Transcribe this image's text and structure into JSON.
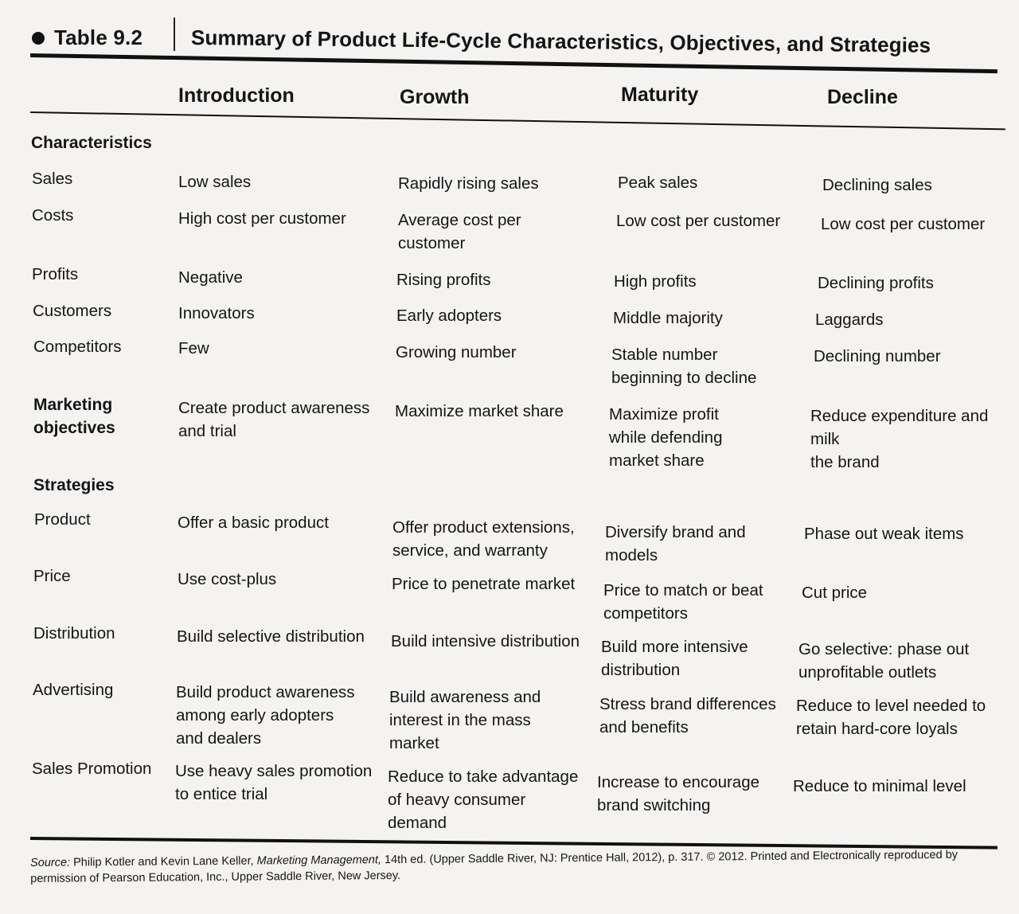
{
  "header": {
    "table_label": "Table 9.2",
    "title": "Summary of Product Life-Cycle Characteristics, Objectives, and Strategies"
  },
  "columns": [
    "Introduction",
    "Growth",
    "Maturity",
    "Decline"
  ],
  "sections": {
    "characteristics": "Characteristics",
    "marketing_objectives": "Marketing\nobjectives",
    "strategies": "Strategies"
  },
  "rows": [
    {
      "label": "Sales",
      "cells": [
        "Low sales",
        "Rapidly rising sales",
        "Peak sales",
        "Declining sales"
      ]
    },
    {
      "label": "Costs",
      "cells": [
        "High cost per customer",
        "Average cost per\ncustomer",
        "Low cost per customer",
        "Low cost per customer"
      ]
    },
    {
      "label": "Profits",
      "cells": [
        "Negative",
        "Rising profits",
        "High profits",
        "Declining profits"
      ]
    },
    {
      "label": "Customers",
      "cells": [
        "Innovators",
        "Early adopters",
        "Middle majority",
        "Laggards"
      ]
    },
    {
      "label": "Competitors",
      "cells": [
        "Few",
        "Growing number",
        "Stable number\nbeginning to decline",
        "Declining number"
      ]
    },
    {
      "label": "",
      "cells": [
        "Create product awareness\nand trial",
        "Maximize market share",
        "Maximize profit\nwhile defending\nmarket share",
        "Reduce expenditure and milk\nthe brand"
      ]
    },
    {
      "label": "Product",
      "cells": [
        "Offer a basic product",
        "Offer product extensions,\nservice, and warranty",
        "Diversify brand and\nmodels",
        "Phase out weak items"
      ]
    },
    {
      "label": "Price",
      "cells": [
        "Use cost-plus",
        "Price to penetrate market",
        "Price to match or beat\ncompetitors",
        "Cut price"
      ]
    },
    {
      "label": "Distribution",
      "cells": [
        "Build selective distribution",
        "Build intensive distribution",
        "Build more intensive\ndistribution",
        "Go selective: phase out\nunprofitable outlets"
      ]
    },
    {
      "label": "Advertising",
      "cells": [
        "Build product awareness\namong early adopters\nand dealers",
        "Build awareness and\ninterest in the mass\nmarket",
        "Stress brand differences\nand benefits",
        "Reduce to level needed to\nretain hard-core loyals"
      ]
    },
    {
      "label": "Sales Promotion",
      "cells": [
        "Use heavy sales promotion\nto entice trial",
        "Reduce to take advantage\nof heavy consumer\ndemand",
        "Increase to encourage\nbrand switching",
        "Reduce to minimal level"
      ]
    }
  ],
  "source": {
    "prefix": "Source:",
    "authors": " Philip Kotler and Kevin Lane Keller, ",
    "book": "Marketing Management,",
    "rest": " 14th ed. (Upper Saddle River, NJ: Prentice Hall, 2012), p. 317. © 2012. Printed and Electronically reproduced by permission of Pearson Education, Inc., Upper Saddle River, New Jersey."
  }
}
